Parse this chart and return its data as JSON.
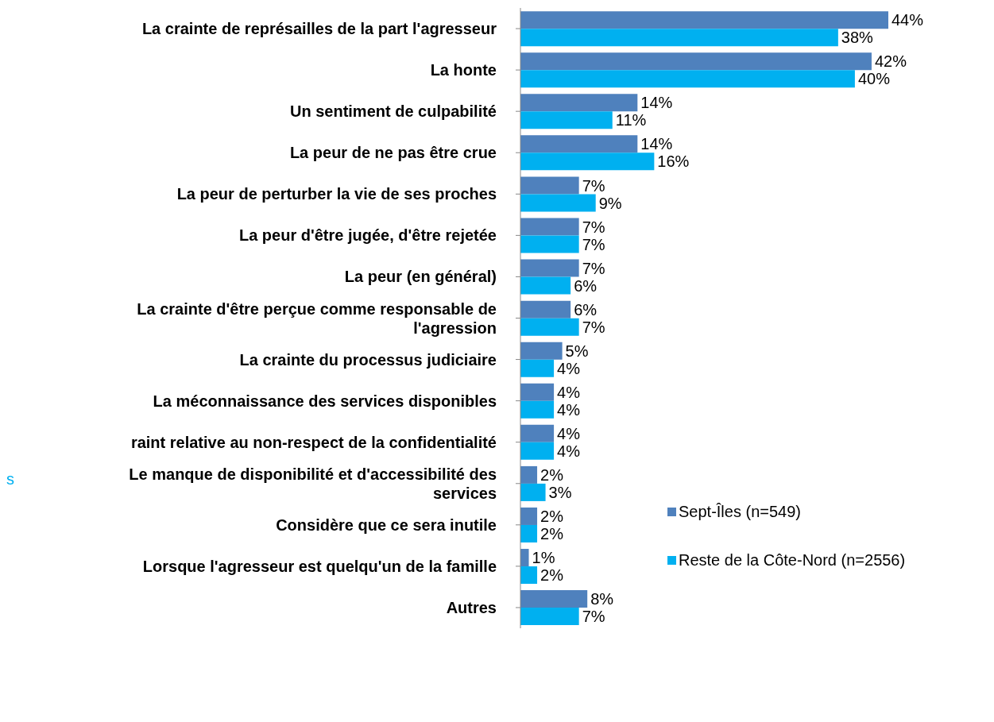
{
  "chart_data": {
    "type": "bar",
    "orientation": "horizontal",
    "legend": "right",
    "categories": [
      "La crainte de représailles de la part l'agresseur",
      "La honte",
      "Un sentiment de culpabilité",
      "La peur de ne pas être crue",
      "La peur de perturber la vie de ses proches",
      "La peur d'être jugée, d'être rejetée",
      "La peur (en général)",
      "La crainte d'être perçue comme responsable de l'agression",
      "La crainte du processus judiciaire",
      "La méconnaissance des services disponibles",
      "raint relative au non-respect de la confidentialité",
      "Le manque de disponibilité et d'accessibilité des services",
      "Considère que ce sera inutile",
      "Lorsque l'agresseur est quelqu'un de la famille",
      "Autres"
    ],
    "series": [
      {
        "name": "Sept-Îles (n=549)",
        "color": "#4f81bd",
        "values": [
          44,
          42,
          14,
          14,
          7,
          7,
          7,
          6,
          5,
          4,
          4,
          2,
          2,
          1,
          8
        ],
        "value_labels": [
          "44%",
          "42%",
          "14%",
          "14%",
          "7%",
          "7%",
          "7%",
          "6%",
          "5%",
          "4%",
          "4%",
          "2%",
          "2%",
          "1%",
          "8%"
        ]
      },
      {
        "name": "Reste de la Côte-Nord (n=2556)",
        "color": "#00b0f0",
        "values": [
          38,
          40,
          11,
          16,
          9,
          7,
          6,
          7,
          4,
          4,
          4,
          3,
          2,
          2,
          7
        ],
        "value_labels": [
          "38%",
          "40%",
          "11%",
          "16%",
          "9%",
          "7%",
          "6%",
          "7%",
          "4%",
          "4%",
          "4%",
          "3%",
          "2%",
          "2%",
          "7%"
        ]
      }
    ],
    "annotations": [
      "s"
    ]
  }
}
